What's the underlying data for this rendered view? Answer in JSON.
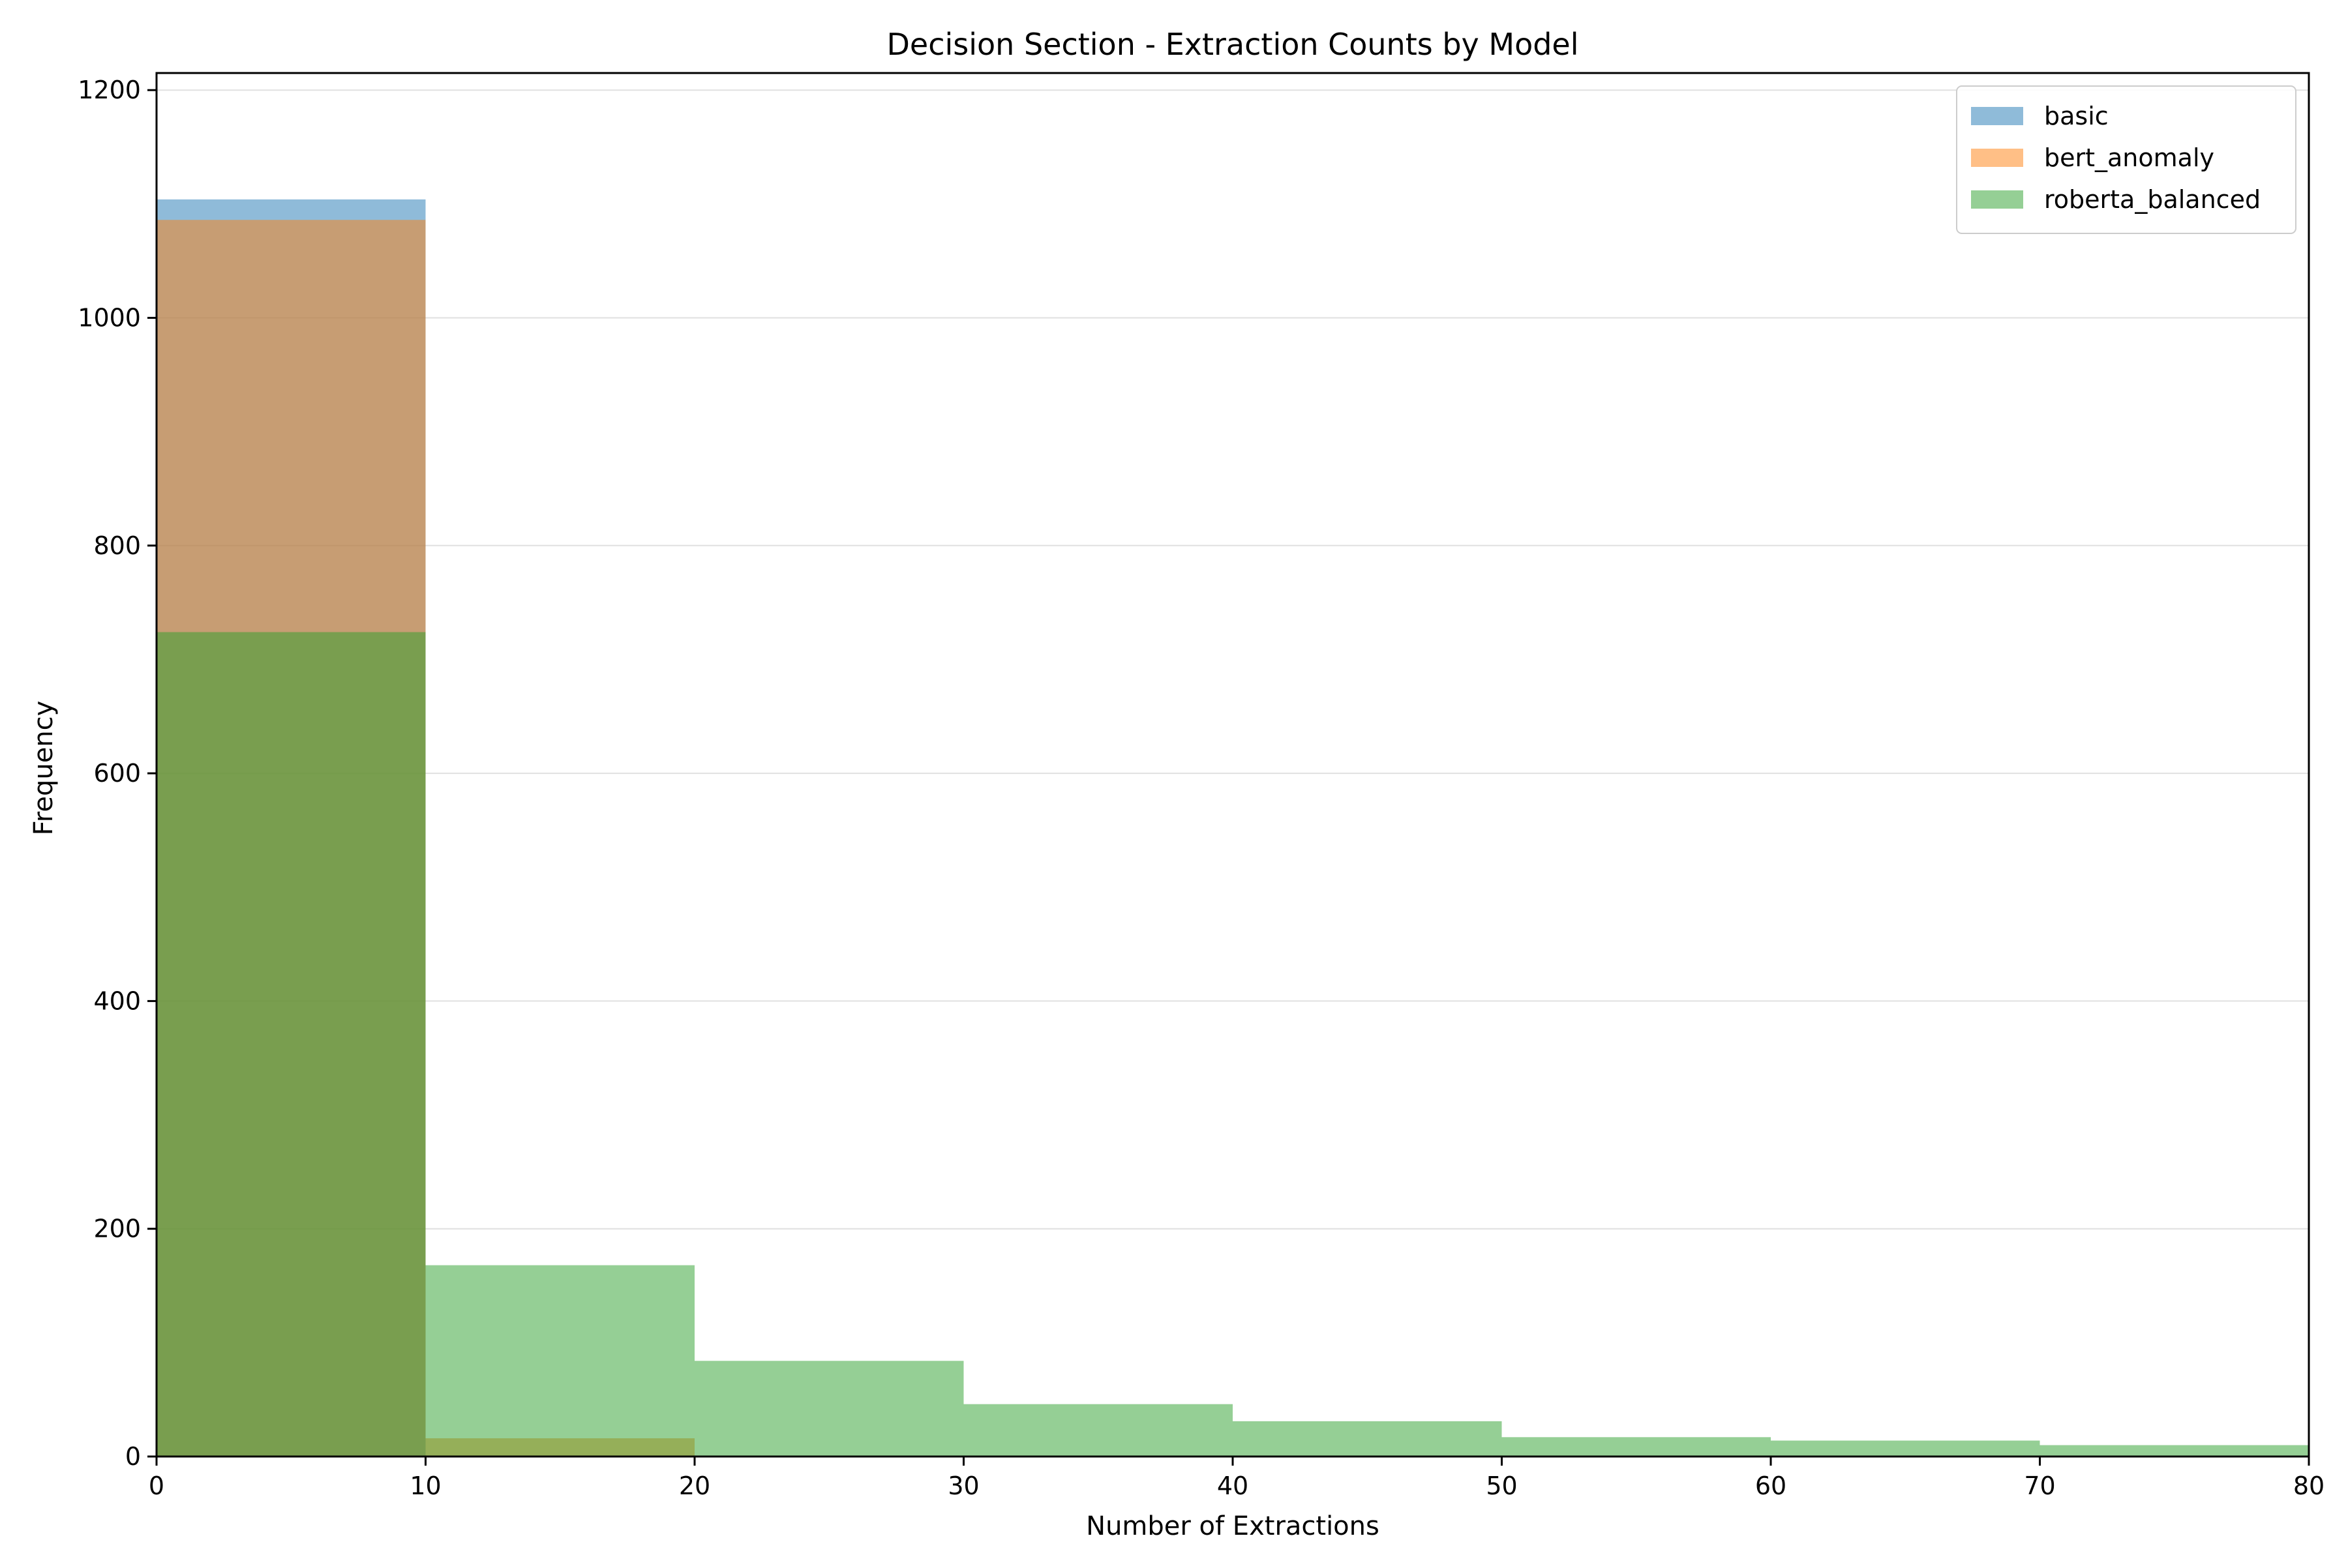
{
  "chart_data": {
    "type": "histogram",
    "title": "Decision Section - Extraction Counts by Model",
    "xlabel": "Number of Extractions",
    "ylabel": "Frequency",
    "xlim": [
      0,
      80
    ],
    "ylim": [
      0,
      1215
    ],
    "xticks": [
      0,
      10,
      20,
      30,
      40,
      50,
      60,
      70,
      80
    ],
    "yticks": [
      0,
      200,
      400,
      600,
      800,
      1000,
      1200
    ],
    "grid": "horizontal",
    "legend_position": "top-right",
    "bin_edges": [
      0,
      10,
      20,
      30,
      40,
      50,
      60,
      70,
      80
    ],
    "series": [
      {
        "name": "basic",
        "color": "#1f77b4",
        "opacity": 0.5,
        "values": [
          1104,
          0,
          0,
          0,
          0,
          0,
          0,
          0
        ]
      },
      {
        "name": "bert_anomaly",
        "color": "#ff7f0e",
        "opacity": 0.5,
        "values": [
          1086,
          16,
          0,
          0,
          0,
          0,
          0,
          0
        ]
      },
      {
        "name": "roberta_balanced",
        "color": "#2ca02c",
        "opacity": 0.5,
        "values": [
          724,
          168,
          84,
          46,
          31,
          17,
          14,
          10
        ]
      }
    ]
  }
}
